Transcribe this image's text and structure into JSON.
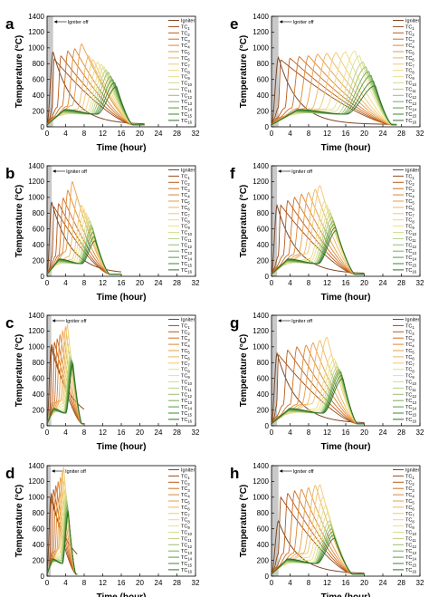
{
  "figure": {
    "chart_data": [
      {
        "type": "line",
        "panel": "a",
        "tmax": 21,
        "ign": {
          "peak": 950,
          "tp": 1.3
        },
        "front": [
          1.5,
          3,
          4.5,
          6,
          7.5,
          9,
          10,
          11,
          11.8,
          12.3,
          12.8,
          13.3,
          13.8,
          14.2,
          14.6,
          15
        ],
        "peaks": [
          860,
          900,
          960,
          990,
          1050,
          900,
          850,
          820,
          790,
          760,
          720,
          690,
          640,
          600,
          560,
          510
        ],
        "post": [
          15,
          15.5,
          15.8,
          16,
          16,
          16,
          15.9,
          15.8,
          15.8,
          15.7,
          15.7,
          15.6,
          15.6,
          15.5,
          15.5,
          15.5
        ],
        "cool_end": 18.5
      },
      {
        "type": "line",
        "panel": "b",
        "tmax": 16,
        "ign": {
          "peak": 940,
          "tp": 1
        },
        "front": [
          1.5,
          2.5,
          3.5,
          4.5,
          5.5,
          6.5,
          7.5,
          8,
          8.5,
          9,
          9.3,
          9.6,
          9.8,
          10,
          10.2,
          10.4
        ],
        "peaks": [
          880,
          920,
          990,
          1090,
          1200,
          1000,
          900,
          850,
          800,
          750,
          700,
          650,
          620,
          560,
          500,
          450
        ],
        "post": [
          10.3,
          10.5,
          10.6,
          10.7,
          10.8,
          10.8,
          10.8,
          10.9,
          10.9,
          10.9,
          10.9,
          11,
          11,
          11,
          11,
          11
        ],
        "cool_end": 13.5
      },
      {
        "type": "line",
        "panel": "c",
        "tmax": 8,
        "ign": {
          "peak": 1000,
          "tp": 0.9
        },
        "front": [
          1,
          1.6,
          2.2,
          2.8,
          3.4,
          4,
          4.4,
          4.6,
          4.8,
          5,
          5.1,
          5.2,
          5.3,
          5.4,
          5.5,
          5.6
        ],
        "peaks": [
          1030,
          1060,
          1100,
          1150,
          1200,
          1250,
          1280,
          1150,
          1050,
          950,
          880,
          850,
          830,
          820,
          800,
          780
        ],
        "post": [
          5.8,
          5.8,
          5.8,
          5.8,
          5.9,
          5.9,
          5.9,
          5.9,
          5.9,
          5.9,
          5.9,
          5.9,
          5.9,
          5.9,
          5.9,
          5.9
        ],
        "cool_end": 7.5
      },
      {
        "type": "line",
        "panel": "d",
        "tmax": 6.5,
        "ign": {
          "peak": 1000,
          "tp": 0.8
        },
        "front": [
          0.9,
          1.4,
          1.9,
          2.4,
          2.9,
          3.3,
          3.6,
          3.8,
          4,
          4.1,
          4.2,
          4.3,
          4.4,
          4.5,
          4.55,
          4.6
        ],
        "peaks": [
          1050,
          1100,
          1150,
          1200,
          1250,
          1320,
          1380,
          1200,
          1100,
          1050,
          1000,
          950,
          900,
          850,
          820,
          800
        ],
        "post": [
          4.7,
          4.7,
          4.8,
          4.8,
          4.8,
          4.8,
          4.8,
          4.8,
          4.8,
          4.8,
          4.8,
          4.8,
          4.8,
          4.8,
          4.8,
          4.8
        ],
        "cool_end": 6.2
      },
      {
        "type": "line",
        "panel": "e",
        "tmax": 27,
        "ign": {
          "peak": 880,
          "tp": 1.5
        },
        "front": [
          2,
          4,
          6,
          8,
          10,
          12,
          14,
          16,
          18,
          19,
          19.8,
          20.4,
          21,
          21.5,
          22,
          22.4
        ],
        "peaks": [
          850,
          870,
          890,
          900,
          920,
          930,
          940,
          950,
          960,
          900,
          820,
          760,
          700,
          650,
          580,
          520
        ],
        "post": [
          21.5,
          22,
          22.5,
          22.8,
          23,
          23,
          23.1,
          23.1,
          23.2,
          23.2,
          23.2,
          23.3,
          23.3,
          23.3,
          23.3,
          23.3
        ],
        "cool_end": 26
      },
      {
        "type": "line",
        "panel": "f",
        "tmax": 20,
        "ign": {
          "peak": 900,
          "tp": 1.2
        },
        "front": [
          2,
          3.5,
          5,
          6.5,
          8,
          9.5,
          10.5,
          11.5,
          12,
          12.5,
          12.8,
          13.1,
          13.4,
          13.6,
          13.8,
          14
        ],
        "peaks": [
          900,
          960,
          1000,
          1040,
          1060,
          1100,
          1150,
          950,
          900,
          850,
          800,
          750,
          700,
          660,
          620,
          580
        ],
        "post": [
          13.5,
          13.8,
          14,
          14.2,
          14.2,
          14.3,
          14.3,
          14.3,
          14.4,
          14.4,
          14.4,
          14.4,
          14.4,
          14.5,
          14.5,
          14.5
        ],
        "cool_end": 18
      },
      {
        "type": "line",
        "panel": "g",
        "tmax": 20,
        "ign": {
          "peak": 920,
          "tp": 1.2
        },
        "front": [
          1.5,
          3.5,
          5.5,
          7.5,
          9,
          10.5,
          12,
          13,
          13.6,
          14,
          14.3,
          14.6,
          14.8,
          15,
          15.2,
          15.4
        ],
        "peaks": [
          900,
          960,
          1000,
          1020,
          1050,
          1080,
          1120,
          900,
          850,
          800,
          750,
          720,
          700,
          680,
          640,
          600
        ],
        "post": [
          14.8,
          15,
          15.2,
          15.3,
          15.3,
          15.4,
          15.4,
          15.5,
          15.5,
          15.5,
          15.5,
          15.5,
          15.5,
          15.5,
          15.5,
          15.5
        ],
        "cool_end": 18.5
      },
      {
        "type": "line",
        "panel": "h",
        "tmax": 20,
        "ign": {
          "peak": 700,
          "tp": 1.5
        },
        "front": [
          2,
          3.5,
          5,
          6.5,
          8,
          9.5,
          10.5,
          11.2,
          11.8,
          12.2,
          12.5,
          12.8,
          13,
          13.2,
          13.4,
          13.6
        ],
        "peaks": [
          1000,
          1050,
          1080,
          1100,
          1120,
          1150,
          1160,
          1000,
          900,
          800,
          700,
          650,
          600,
          560,
          520,
          480
        ],
        "post": [
          12.8,
          13,
          13.2,
          13.3,
          13.4,
          13.4,
          13.4,
          13.5,
          13.5,
          13.5,
          13.5,
          13.5,
          13.5,
          13.5,
          13.5,
          13.5
        ],
        "cool_end": 17.5
      }
    ],
    "common": {
      "xlabel": "Time (hour)",
      "ylabel": "Temperature (°C)",
      "xlim": [
        0,
        32
      ],
      "ylim": [
        0,
        1400
      ],
      "xticks": [
        "0",
        "4",
        "8",
        "12",
        "16",
        "20",
        "24",
        "28",
        "32"
      ],
      "yticks": [
        "0",
        "200",
        "400",
        "600",
        "800",
        "1000",
        "1200",
        "1400"
      ],
      "annotation": "Igniter off",
      "legend_position": "top-right",
      "legend": [
        {
          "base": "Igniter",
          "sub": ""
        },
        {
          "base": "TC",
          "sub": "1"
        },
        {
          "base": "TC",
          "sub": "2"
        },
        {
          "base": "TC",
          "sub": "3"
        },
        {
          "base": "TC",
          "sub": "4"
        },
        {
          "base": "TC",
          "sub": "5"
        },
        {
          "base": "TC",
          "sub": "6"
        },
        {
          "base": "TC",
          "sub": "7"
        },
        {
          "base": "TC",
          "sub": "8"
        },
        {
          "base": "TC",
          "sub": "9"
        },
        {
          "base": "TC",
          "sub": "10"
        },
        {
          "base": "TC",
          "sub": "11"
        },
        {
          "base": "TC",
          "sub": "12"
        },
        {
          "base": "TC",
          "sub": "13"
        },
        {
          "base": "TC",
          "sub": "14"
        },
        {
          "base": "TC",
          "sub": "15"
        },
        {
          "base": "TC",
          "sub": "16"
        }
      ],
      "colors": [
        "#7a4a2a",
        "#9c4a15",
        "#b85a1a",
        "#cf6e22",
        "#de8530",
        "#e89c45",
        "#efb45e",
        "#f3c672",
        "#f2d780",
        "#e9e18a",
        "#d3e090",
        "#b8d282",
        "#98c06c",
        "#78ad55",
        "#5a9a42",
        "#3f8433",
        "#2e6e27"
      ]
    }
  }
}
